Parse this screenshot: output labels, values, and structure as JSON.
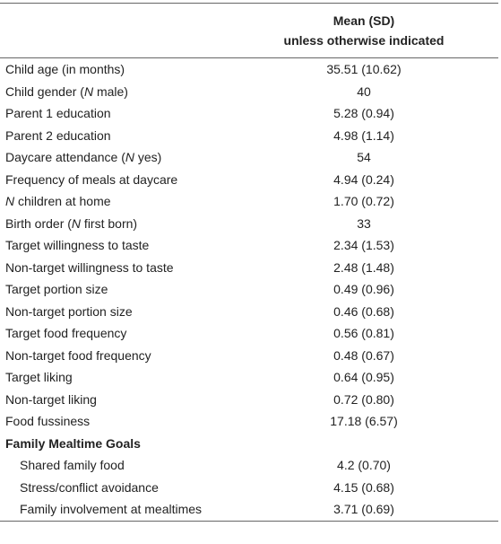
{
  "table": {
    "header": [
      "Mean (SD)",
      "unless otherwise indicated"
    ],
    "rows": [
      {
        "label": "Child age (in months)",
        "value": "35.51 (10.62)"
      },
      {
        "label": "Child gender (N male)",
        "value": "40"
      },
      {
        "label": "Parent 1 education",
        "value": "5.28 (0.94)"
      },
      {
        "label": "Parent 2 education",
        "value": "4.98 (1.14)"
      },
      {
        "label": "Daycare attendance (N yes)",
        "value": "54"
      },
      {
        "label": "Frequency of meals at daycare",
        "value": "4.94 (0.24)"
      },
      {
        "label": "N children at home",
        "value": "1.70 (0.72)"
      },
      {
        "label": "Birth order (N first born)",
        "value": "33"
      },
      {
        "label": "Target willingness to taste",
        "value": "2.34 (1.53)"
      },
      {
        "label": "Non-target willingness to taste",
        "value": "2.48 (1.48)"
      },
      {
        "label": "Target portion size",
        "value": "0.49 (0.96)"
      },
      {
        "label": "Non-target portion size",
        "value": "0.46 (0.68)"
      },
      {
        "label": "Target food frequency",
        "value": "0.56 (0.81)"
      },
      {
        "label": "Non-target food frequency",
        "value": "0.48 (0.67)"
      },
      {
        "label": "Target liking",
        "value": "0.64 (0.95)"
      },
      {
        "label": "Non-target liking",
        "value": "0.72 (0.80)"
      },
      {
        "label": "Food fussiness",
        "value": "17.18 (6.57)"
      }
    ],
    "section": {
      "title": "Family Mealtime Goals",
      "rows": [
        {
          "label": "Shared family food",
          "value": "4.2 (0.70)"
        },
        {
          "label": "Stress/conflict avoidance",
          "value": "4.15 (0.68)"
        },
        {
          "label": "Family involvement at mealtimes",
          "value": "3.71 (0.69)"
        }
      ]
    }
  }
}
